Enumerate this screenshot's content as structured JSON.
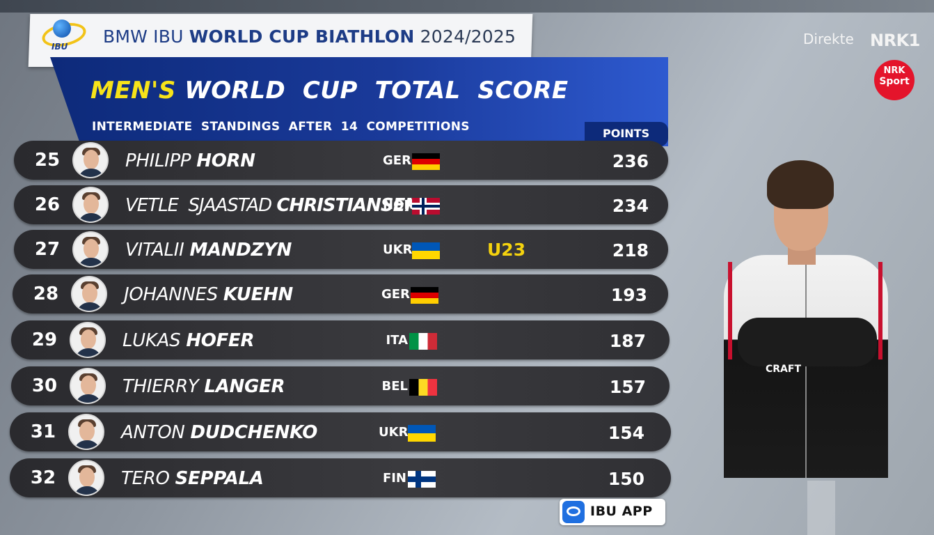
{
  "header": {
    "logo_text": "IBU",
    "title_prefix": "BMW IBU",
    "title_bold": "WORLD CUP BIATHLON",
    "season": "2024/2025",
    "heading_highlight": "MEN'S",
    "heading_rest": "WORLD  CUP  TOTAL  SCORE",
    "subheading": "INTERMEDIATE  STANDINGS  AFTER  14  COMPETITIONS",
    "points_label": "POINTS"
  },
  "standings": [
    {
      "rank": "25",
      "first": "PHILIPP",
      "last": "HORN",
      "nation": "GER",
      "flag": "ger",
      "tag": "",
      "points": "236"
    },
    {
      "rank": "26",
      "first": "VETLE  SJAASTAD",
      "last": "CHRISTIANSEN",
      "nation": "NOR",
      "flag": "nor",
      "tag": "",
      "points": "234"
    },
    {
      "rank": "27",
      "first": "VITALII",
      "last": "MANDZYN",
      "nation": "UKR",
      "flag": "ukr",
      "tag": "U23",
      "points": "218"
    },
    {
      "rank": "28",
      "first": "JOHANNES",
      "last": "KUEHN",
      "nation": "GER",
      "flag": "ger",
      "tag": "",
      "points": "193"
    },
    {
      "rank": "29",
      "first": "LUKAS",
      "last": "HOFER",
      "nation": "ITA",
      "flag": "ita",
      "tag": "",
      "points": "187"
    },
    {
      "rank": "30",
      "first": "THIERRY",
      "last": "LANGER",
      "nation": "BEL",
      "flag": "bel",
      "tag": "",
      "points": "157"
    },
    {
      "rank": "31",
      "first": "ANTON",
      "last": "DUDCHENKO",
      "nation": "UKR",
      "flag": "ukr",
      "tag": "",
      "points": "154"
    },
    {
      "rank": "32",
      "first": "TERO",
      "last": "SEPPALA",
      "nation": "FIN",
      "flag": "fin",
      "tag": "",
      "points": "150"
    }
  ],
  "broadcast": {
    "live_label": "Direkte",
    "channel": "NRK1",
    "badge_line1": "NRK",
    "badge_line2": "Sport"
  },
  "athlete_photo": {
    "jacket_brand": "CRAFT"
  },
  "app_badge": {
    "label": "IBU APP"
  },
  "colors": {
    "header_blue": "#0d2a7a",
    "highlight_yellow": "#f7e319",
    "row_dark": "#2a2a2e",
    "nrk_red": "#e4142b"
  }
}
